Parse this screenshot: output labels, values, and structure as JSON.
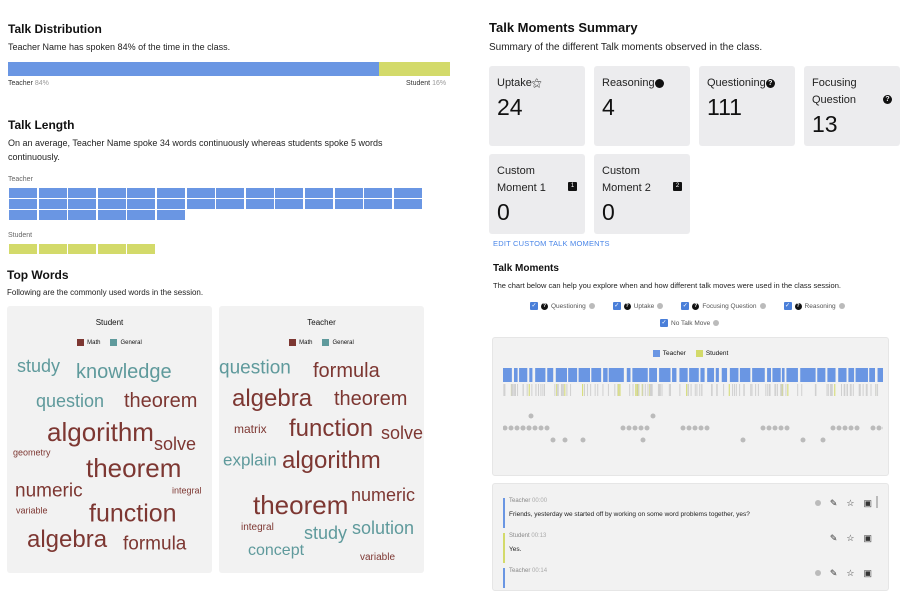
{
  "talk_distribution": {
    "title": "Talk Distribution",
    "summary": "Teacher Name has spoken 84% of the time in the class.",
    "teacher_label": "Teacher",
    "teacher_pct": "84%",
    "student_label": "Student",
    "student_pct": "16%",
    "teacher_share": 84,
    "colors": {
      "teacher": "#6a96e3",
      "student": "#d3da6a"
    }
  },
  "talk_length": {
    "title": "Talk Length",
    "summary": "On an average, Teacher Name spoke 34 words continuously whereas students spoke 5 words continuously.",
    "teacher_label": "Teacher",
    "teacher_words": 34,
    "student_label": "Student",
    "student_words": 5
  },
  "top_words": {
    "title": "Top Words",
    "summary": "Following are the commonly used words in the session.",
    "colors": {
      "math": "#7d3732",
      "general": "#5f9a9c"
    },
    "clouds": [
      {
        "title": "Student",
        "legend": [
          "Math",
          "General"
        ],
        "words": [
          {
            "text": "study",
            "cat": "general"
          },
          {
            "text": "knowledge",
            "cat": "general"
          },
          {
            "text": "question",
            "cat": "general"
          },
          {
            "text": "theorem",
            "cat": "math"
          },
          {
            "text": "algorithm",
            "cat": "math"
          },
          {
            "text": "solve",
            "cat": "math"
          },
          {
            "text": "geometry",
            "cat": "math"
          },
          {
            "text": "theorem",
            "cat": "math"
          },
          {
            "text": "numeric",
            "cat": "math"
          },
          {
            "text": "integral",
            "cat": "math"
          },
          {
            "text": "variable",
            "cat": "math"
          },
          {
            "text": "function",
            "cat": "math"
          },
          {
            "text": "algebra",
            "cat": "math"
          },
          {
            "text": "formula",
            "cat": "math"
          }
        ]
      },
      {
        "title": "Teacher",
        "legend": [
          "Math",
          "General"
        ],
        "words": [
          {
            "text": "question",
            "cat": "general"
          },
          {
            "text": "formula",
            "cat": "math"
          },
          {
            "text": "algebra",
            "cat": "math"
          },
          {
            "text": "theorem",
            "cat": "math"
          },
          {
            "text": "matrix",
            "cat": "math"
          },
          {
            "text": "function",
            "cat": "math"
          },
          {
            "text": "solve",
            "cat": "math"
          },
          {
            "text": "explain",
            "cat": "general"
          },
          {
            "text": "algorithm",
            "cat": "math"
          },
          {
            "text": "theorem",
            "cat": "math"
          },
          {
            "text": "numeric",
            "cat": "math"
          },
          {
            "text": "integral",
            "cat": "math"
          },
          {
            "text": "study",
            "cat": "general"
          },
          {
            "text": "solution",
            "cat": "general"
          },
          {
            "text": "concept",
            "cat": "general"
          },
          {
            "text": "variable",
            "cat": "math"
          }
        ]
      }
    ]
  },
  "summary": {
    "title": "Talk Moments Summary",
    "subtitle": "Summary of the different Talk moments observed in the class.",
    "cards": [
      {
        "label": "Uptake",
        "icon": "uptake-icon",
        "glyph": "⚝",
        "value": "24"
      },
      {
        "label": "Reasoning",
        "icon": "reasoning-icon",
        "glyph": "●",
        "value": "4"
      },
      {
        "label": "Questioning",
        "icon": "question-icon",
        "glyph": "?",
        "value": "111"
      },
      {
        "label": "Focusing Question",
        "icon": "question-icon",
        "glyph": "?",
        "value": "13"
      },
      {
        "label": "Custom Moment 1",
        "icon": "badge-1-icon",
        "glyph": "1",
        "value": "0"
      },
      {
        "label": "Custom Moment 2",
        "icon": "badge-2-icon",
        "glyph": "2",
        "value": "0"
      }
    ],
    "edit_link": "EDIT CUSTOM TALK MOMENTS"
  },
  "talk_moments": {
    "title": "Talk Moments",
    "subtitle": "The chart below can help you explore when and how different talk moves were used in the class session.",
    "filters": [
      {
        "label": "Questioning",
        "checked": true
      },
      {
        "label": "Uptake",
        "checked": true
      },
      {
        "label": "Focusing Question",
        "checked": true
      },
      {
        "label": "Reasoning",
        "checked": true
      },
      {
        "label": "No Talk Move",
        "checked": true
      }
    ],
    "legend": [
      "Teacher",
      "Student"
    ]
  },
  "transcript": [
    {
      "speaker": "Teacher",
      "time": "00:00",
      "text": "Friends, yesterday we started off by working on some word problems together, yes?"
    },
    {
      "speaker": "Student",
      "time": "00:13",
      "text": "Yes."
    },
    {
      "speaker": "Teacher",
      "time": "00:14",
      "text": ""
    }
  ]
}
